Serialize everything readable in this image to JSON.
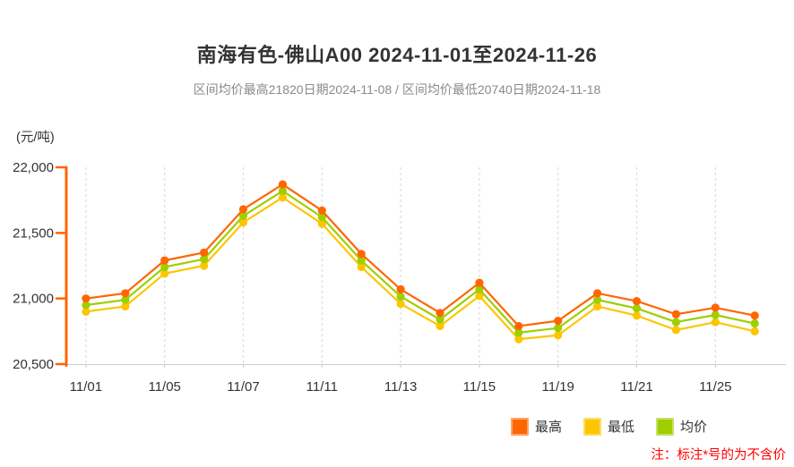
{
  "header": {
    "title": "南海有色-佛山A00 2024-11-01至2024-11-26",
    "subtitle": "区间均价最高21820日期2024-11-08 / 区间均价最低20740日期2024-11-18"
  },
  "axis": {
    "unit_label": "(元/吨)",
    "y_ticks": [
      "22,000",
      "21,500",
      "21,000",
      "20,500"
    ],
    "y_tick_values": [
      22000,
      21500,
      21000,
      20500
    ],
    "axis_color": "#FF6600",
    "grid_color": "#DDDDDD",
    "x_axis_color": "#CCCCCC",
    "tick_label_color": "#333333"
  },
  "chart_data": {
    "type": "line",
    "title": "南海有色-佛山A00 2024-11-01至2024-11-26",
    "subtitle": "区间均价最高21820日期2024-11-08 / 区间均价最低20740日期2024-11-18",
    "ylabel": "(元/吨)",
    "ylim": [
      20500,
      22000
    ],
    "grid": "vertical-dashed",
    "legend_position": "bottom-right",
    "x": [
      "11/01",
      "11/04",
      "11/05",
      "11/06",
      "11/07",
      "11/08",
      "11/11",
      "11/12",
      "11/13",
      "11/14",
      "11/15",
      "11/18",
      "11/19",
      "11/20",
      "11/21",
      "11/22",
      "11/25",
      "11/26"
    ],
    "x_axis_labels": [
      "11/01",
      "11/05",
      "11/07",
      "11/11",
      "11/13",
      "11/15",
      "11/19",
      "11/21",
      "11/25"
    ],
    "series": [
      {
        "key": "high",
        "name": "最高",
        "color": "#FF6600",
        "values": [
          21000,
          21040,
          21290,
          21350,
          21680,
          21870,
          21670,
          21340,
          21070,
          20890,
          21120,
          20790,
          20830,
          21040,
          20980,
          20880,
          20930,
          20870
        ]
      },
      {
        "key": "low",
        "name": "最低",
        "color": "#FDC500",
        "values": [
          20900,
          20940,
          21190,
          21250,
          21580,
          21770,
          21570,
          21240,
          20960,
          20790,
          21020,
          20690,
          20720,
          20940,
          20870,
          20760,
          20820,
          20750
        ]
      },
      {
        "key": "avg",
        "name": "均价",
        "color": "#9FCE00",
        "values": [
          20950,
          20990,
          21240,
          21300,
          21630,
          21820,
          21620,
          21290,
          21015,
          20840,
          21070,
          20740,
          20775,
          20990,
          20925,
          20820,
          20875,
          20810
        ]
      }
    ],
    "stats": {
      "max_avg": 21820,
      "max_avg_date": "2024-11-08",
      "min_avg": 20740,
      "min_avg_date": "2024-11-18"
    }
  },
  "legend": {
    "items": [
      {
        "key": "high",
        "label": "最高",
        "color": "#FF6600"
      },
      {
        "key": "low",
        "label": "最低",
        "color": "#FDC500"
      },
      {
        "key": "avg",
        "label": "均价",
        "color": "#9FCE00"
      }
    ]
  },
  "footnote": {
    "text": "注：标注*号的为不含价",
    "color": "#FF0000"
  }
}
